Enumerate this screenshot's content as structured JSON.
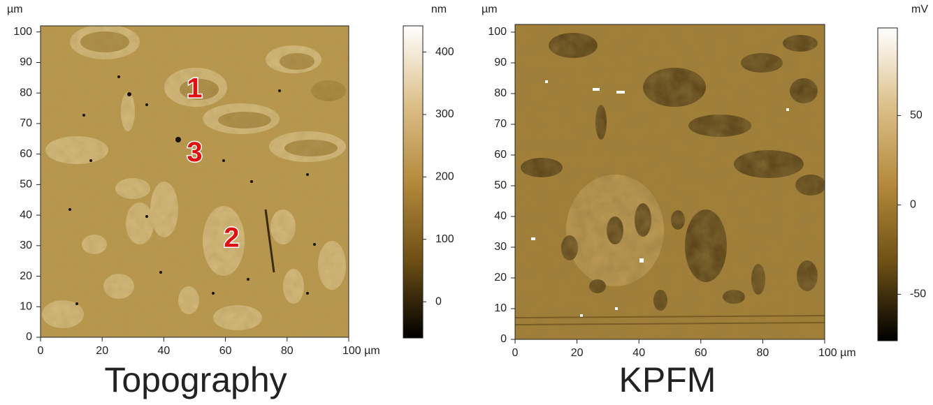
{
  "chart_data": [
    {
      "type": "heatmap",
      "title": "Topography",
      "y_unit": "µm",
      "xlim": [
        0,
        100
      ],
      "ylim": [
        0,
        102
      ],
      "xticks": [
        0,
        20,
        40,
        60,
        80,
        {
          "value": 100,
          "label": "100 µm"
        }
      ],
      "yticks": [
        0,
        10,
        20,
        30,
        40,
        50,
        60,
        70,
        80,
        90,
        100
      ],
      "colorbar": {
        "unit": "nm",
        "lim": [
          -58,
          442
        ],
        "ticks": [
          0,
          100,
          200,
          300,
          400
        ],
        "colors": [
          "#000000",
          "#6e5015",
          "#b48a3c",
          "#dcc08a",
          "#ffffff"
        ]
      },
      "annotations": [
        {
          "text": "1",
          "x": 50,
          "y": 81
        },
        {
          "text": "3",
          "x": 50,
          "y": 60
        },
        {
          "text": "2",
          "x": 62,
          "y": 32
        }
      ],
      "annotation_color": "#e01010"
    },
    {
      "type": "heatmap",
      "title": "KPFM",
      "y_unit": "µm",
      "xlim": [
        0,
        100
      ],
      "ylim": [
        0,
        102.5
      ],
      "xticks": [
        0,
        20,
        40,
        60,
        80,
        {
          "value": 100,
          "label": "100 µm"
        }
      ],
      "yticks": [
        0,
        10,
        20,
        30,
        40,
        50,
        60,
        70,
        80,
        90,
        100
      ],
      "colorbar": {
        "unit": "mV",
        "lim": [
          -76,
          99
        ],
        "ticks": [
          -50,
          0,
          50
        ],
        "colors": [
          "#000000",
          "#6e5015",
          "#b48a3c",
          "#dcc08a",
          "#ffffff"
        ]
      }
    }
  ]
}
